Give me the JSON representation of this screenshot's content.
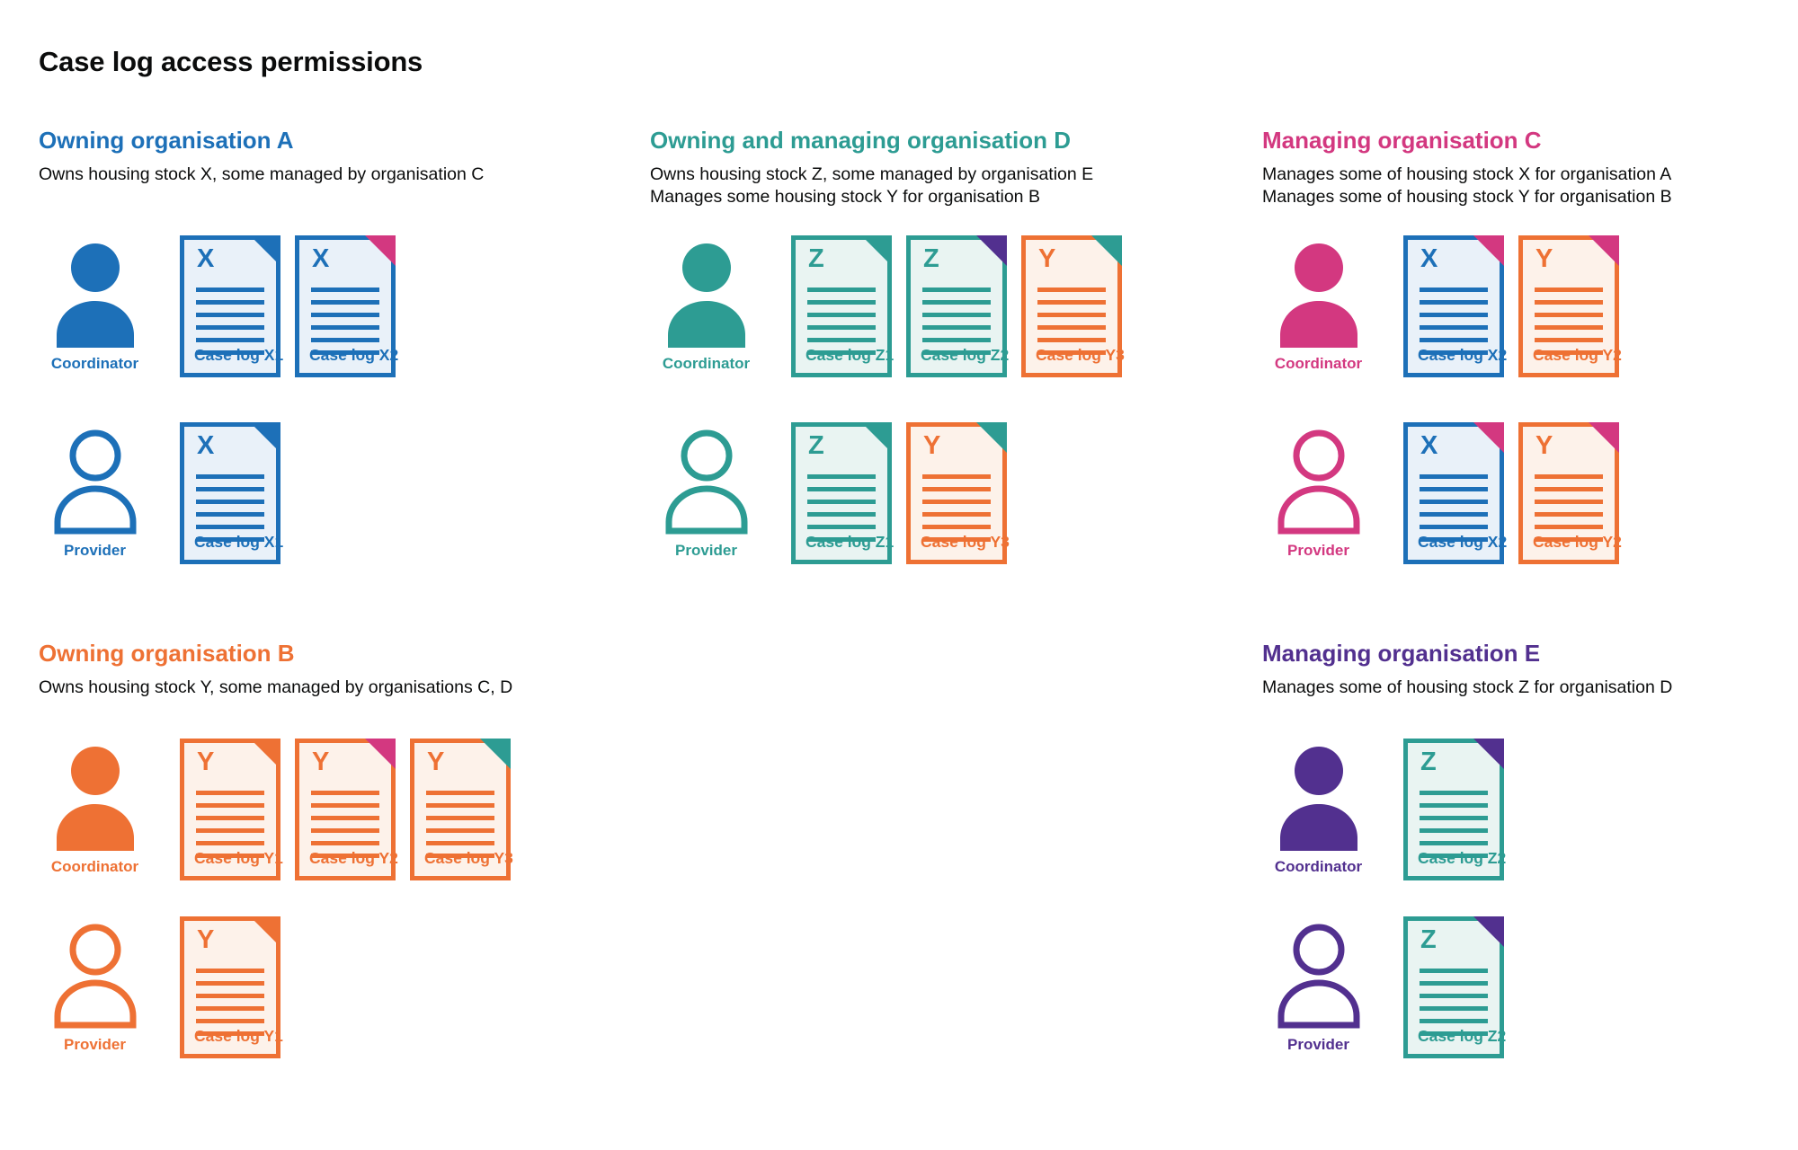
{
  "page_title": "Case log access permissions",
  "palette": {
    "blue": {
      "stroke": "#1d70b8",
      "fill": "#e9f1f9"
    },
    "teal": {
      "stroke": "#2d9c93",
      "fill": "#e9f4f2"
    },
    "orange": {
      "stroke": "#ee7134",
      "fill": "#fdf2ea"
    },
    "pink": {
      "stroke": "#d33880",
      "fill": "#fce9f2"
    },
    "purple": {
      "stroke": "#52308f",
      "fill": "#ece6f4"
    }
  },
  "sections": [
    {
      "title": "Owning organisation A",
      "color": "blue",
      "desc": [
        "Owns housing stock X, some managed by organisation C"
      ],
      "rows": [
        {
          "role": "Coordinator",
          "person_icon": "person-filled-icon",
          "docs": [
            {
              "letter": "X",
              "label": "Case log X1",
              "color": "blue",
              "fold": "blue"
            },
            {
              "letter": "X",
              "label": "Case log X2",
              "color": "blue",
              "fold": "pink"
            }
          ]
        },
        {
          "role": "Provider",
          "person_icon": "person-outline-icon",
          "docs": [
            {
              "letter": "X",
              "label": "Case log X1",
              "color": "blue",
              "fold": "blue"
            }
          ]
        }
      ]
    },
    {
      "title": "Owning and managing organisation D",
      "color": "teal",
      "desc": [
        "Owns housing stock Z, some managed by organisation E",
        "Manages some housing stock Y for organisation B"
      ],
      "rows": [
        {
          "role": "Coordinator",
          "person_icon": "person-filled-icon",
          "docs": [
            {
              "letter": "Z",
              "label": "Case log Z1",
              "color": "teal",
              "fold": "teal"
            },
            {
              "letter": "Z",
              "label": "Case log Z2",
              "color": "teal",
              "fold": "purple"
            },
            {
              "letter": "Y",
              "label": "Case log Y3",
              "color": "orange",
              "fold": "teal"
            }
          ]
        },
        {
          "role": "Provider",
          "person_icon": "person-outline-icon",
          "docs": [
            {
              "letter": "Z",
              "label": "Case log Z1",
              "color": "teal",
              "fold": "teal"
            },
            {
              "letter": "Y",
              "label": "Case log Y3",
              "color": "orange",
              "fold": "teal"
            }
          ]
        }
      ]
    },
    {
      "title": "Managing organisation C",
      "color": "pink",
      "desc": [
        "Manages some of housing stock X for organisation A",
        "Manages some of housing stock Y for organisation B"
      ],
      "rows": [
        {
          "role": "Coordinator",
          "person_icon": "person-filled-icon",
          "docs": [
            {
              "letter": "X",
              "label": "Case log X2",
              "color": "blue",
              "fold": "pink"
            },
            {
              "letter": "Y",
              "label": "Case log Y2",
              "color": "orange",
              "fold": "pink"
            }
          ]
        },
        {
          "role": "Provider",
          "person_icon": "person-outline-icon",
          "docs": [
            {
              "letter": "X",
              "label": "Case log X2",
              "color": "blue",
              "fold": "pink"
            },
            {
              "letter": "Y",
              "label": "Case log Y2",
              "color": "orange",
              "fold": "pink"
            }
          ]
        }
      ]
    },
    {
      "title": "Owning organisation B",
      "color": "orange",
      "desc": [
        "Owns housing stock Y, some managed by organisations C, D"
      ],
      "rows": [
        {
          "role": "Coordinator",
          "person_icon": "person-filled-icon",
          "docs": [
            {
              "letter": "Y",
              "label": "Case log Y1",
              "color": "orange",
              "fold": "orange"
            },
            {
              "letter": "Y",
              "label": "Case log Y2",
              "color": "orange",
              "fold": "pink"
            },
            {
              "letter": "Y",
              "label": "Case log Y3",
              "color": "orange",
              "fold": "teal"
            }
          ]
        },
        {
          "role": "Provider",
          "person_icon": "person-outline-icon",
          "docs": [
            {
              "letter": "Y",
              "label": "Case log Y1",
              "color": "orange",
              "fold": "orange"
            }
          ]
        }
      ]
    },
    {
      "title": "Managing organisation E",
      "color": "purple",
      "desc": [
        "Manages some of housing stock Z for organisation D"
      ],
      "rows": [
        {
          "role": "Coordinator",
          "person_icon": "person-filled-icon",
          "docs": [
            {
              "letter": "Z",
              "label": "Case log Z2",
              "color": "teal",
              "fold": "purple"
            }
          ]
        },
        {
          "role": "Provider",
          "person_icon": "person-outline-icon",
          "docs": [
            {
              "letter": "Z",
              "label": "Case log Z2",
              "color": "teal",
              "fold": "purple"
            }
          ]
        }
      ]
    }
  ]
}
